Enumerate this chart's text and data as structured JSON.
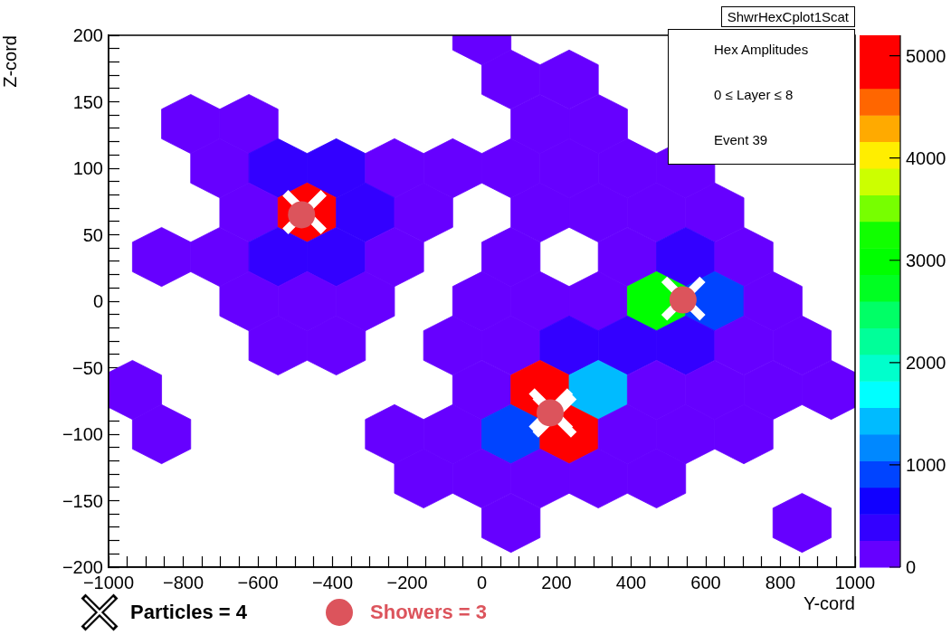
{
  "chart_data": {
    "type": "scatter",
    "xlabel": "Y-cord",
    "ylabel": "Z-cord",
    "annotations": [
      "ShwrHexCplot1Scat",
      "Hex Amplitudes",
      "0 ≤ Layer ≤ 8",
      "Event 39"
    ],
    "xlim": [
      -1000,
      1000
    ],
    "xticks": [
      -1000,
      {
        "value": -950,
        "label": null
      },
      {
        "value": -900,
        "label": null
      },
      {
        "value": -850,
        "label": null
      },
      -800,
      {
        "value": -750,
        "label": null
      },
      {
        "value": -700,
        "label": null
      },
      {
        "value": -650,
        "label": null
      },
      -600,
      {
        "value": -550,
        "label": null
      },
      {
        "value": -500,
        "label": null
      },
      {
        "value": -450,
        "label": null
      },
      -400,
      {
        "value": -350,
        "label": null
      },
      {
        "value": -300,
        "label": null
      },
      {
        "value": -250,
        "label": null
      },
      -200,
      {
        "value": -150,
        "label": null
      },
      {
        "value": -100,
        "label": null
      },
      {
        "value": -50,
        "label": null
      },
      0,
      {
        "value": 50,
        "label": null
      },
      {
        "value": 100,
        "label": null
      },
      {
        "value": 150,
        "label": null
      },
      200,
      {
        "value": 250,
        "label": null
      },
      {
        "value": 300,
        "label": null
      },
      {
        "value": 350,
        "label": null
      },
      400,
      {
        "value": 450,
        "label": null
      },
      {
        "value": 500,
        "label": null
      },
      {
        "value": 550,
        "label": null
      },
      600,
      {
        "value": 650,
        "label": null
      },
      {
        "value": 700,
        "label": null
      },
      {
        "value": 750,
        "label": null
      },
      800,
      {
        "value": 850,
        "label": null
      },
      {
        "value": 900,
        "label": null
      },
      {
        "value": 950,
        "label": null
      },
      1000
    ],
    "ylim": [
      -200,
      200
    ],
    "yticks": [
      -200,
      {
        "value": -190,
        "label": null
      },
      {
        "value": -180,
        "label": null
      },
      {
        "value": -170,
        "label": null
      },
      {
        "value": -160,
        "label": null
      },
      -150,
      {
        "value": -140,
        "label": null
      },
      {
        "value": -130,
        "label": null
      },
      {
        "value": -120,
        "label": null
      },
      {
        "value": -110,
        "label": null
      },
      -100,
      {
        "value": -90,
        "label": null
      },
      {
        "value": -80,
        "label": null
      },
      {
        "value": -70,
        "label": null
      },
      {
        "value": -60,
        "label": null
      },
      -50,
      {
        "value": -40,
        "label": null
      },
      {
        "value": -30,
        "label": null
      },
      {
        "value": -20,
        "label": null
      },
      {
        "value": -10,
        "label": null
      },
      0,
      {
        "value": 10,
        "label": null
      },
      {
        "value": 20,
        "label": null
      },
      {
        "value": 30,
        "label": null
      },
      {
        "value": 40,
        "label": null
      },
      50,
      {
        "value": 60,
        "label": null
      },
      {
        "value": 70,
        "label": null
      },
      {
        "value": 80,
        "label": null
      },
      {
        "value": 90,
        "label": null
      },
      100,
      {
        "value": 110,
        "label": null
      },
      {
        "value": 120,
        "label": null
      },
      {
        "value": 130,
        "label": null
      },
      {
        "value": 140,
        "label": null
      },
      150,
      {
        "value": 160,
        "label": null
      },
      {
        "value": 170,
        "label": null
      },
      {
        "value": 180,
        "label": null
      },
      {
        "value": 190,
        "label": null
      },
      200
    ],
    "clim": [
      0,
      5200
    ],
    "cticks": [
      0,
      1000,
      2000,
      3000,
      4000,
      5000
    ],
    "legend": "bottom",
    "series": [
      {
        "type": "scatter",
        "x": [
          0,
          78,
          234,
          -780,
          -624,
          156,
          312,
          -702,
          -546,
          -390,
          -234,
          -78,
          78,
          234,
          390,
          546,
          -624,
          -468,
          -312,
          -156,
          156,
          312,
          468,
          624,
          -858,
          -702,
          -546,
          -390,
          -234,
          78,
          390,
          546,
          702,
          -624,
          -468,
          -312,
          0,
          156,
          312,
          468,
          624,
          780,
          -546,
          -390,
          -78,
          78,
          234,
          390,
          546,
          702,
          858,
          -936,
          0,
          156,
          312,
          468,
          624,
          780,
          936,
          -858,
          -234,
          -78,
          78,
          234,
          390,
          546,
          702,
          -156,
          0,
          156,
          312,
          468,
          78,
          858
        ],
        "values": [
          200,
          166.7,
          166.7,
          133.3,
          133.3,
          133.3,
          133.3,
          100,
          100,
          100,
          100,
          100,
          100,
          100,
          100,
          100,
          66.7,
          66.7,
          66.7,
          66.7,
          66.7,
          66.7,
          66.7,
          66.7,
          33.3,
          33.3,
          33.3,
          33.3,
          33.3,
          33.3,
          33.3,
          33.3,
          33.3,
          0,
          0,
          0,
          0,
          0,
          0,
          0,
          0,
          0,
          -33.3,
          -33.3,
          -33.3,
          -33.3,
          -33.3,
          -33.3,
          -33.3,
          -33.3,
          -33.3,
          -66.7,
          -66.7,
          -66.7,
          -66.7,
          -66.7,
          -66.7,
          -66.7,
          -66.7,
          -100,
          -100,
          -100,
          -100,
          -100,
          -100,
          -100,
          -100,
          -133.3,
          -133.3,
          -133.3,
          -133.3,
          -133.3,
          -166.7,
          -166.7
        ],
        "cvalues": [
          100,
          100,
          100,
          100,
          100,
          100,
          100,
          100,
          400,
          400,
          100,
          100,
          100,
          100,
          100,
          100,
          100,
          5000,
          400,
          100,
          100,
          100,
          100,
          100,
          100,
          100,
          400,
          400,
          100,
          100,
          100,
          400,
          100,
          100,
          100,
          100,
          100,
          100,
          100,
          3000,
          900,
          100,
          100,
          100,
          100,
          100,
          400,
          400,
          400,
          100,
          100,
          100,
          100,
          5000,
          1400,
          100,
          100,
          100,
          100,
          100,
          100,
          100,
          900,
          5000,
          100,
          100,
          100,
          100,
          100,
          100,
          100,
          100,
          100,
          100
        ],
        "colors": [
          "#6600ff",
          "#6600ff",
          "#6600ff",
          "#6600ff",
          "#6600ff",
          "#6600ff",
          "#6600ff",
          "#6600ff",
          "#3300ff",
          "#3300ff",
          "#6600ff",
          "#6600ff",
          "#6600ff",
          "#6600ff",
          "#6600ff",
          "#6600ff",
          "#6600ff",
          "#ff0000",
          "#3300ff",
          "#6600ff",
          "#6600ff",
          "#6600ff",
          "#6600ff",
          "#6600ff",
          "#6600ff",
          "#6600ff",
          "#3300ff",
          "#3300ff",
          "#6600ff",
          "#6600ff",
          "#6600ff",
          "#3300ff",
          "#6600ff",
          "#6600ff",
          "#6600ff",
          "#6600ff",
          "#6600ff",
          "#6600ff",
          "#6600ff",
          "#00ff00",
          "#0044ff",
          "#6600ff",
          "#6600ff",
          "#6600ff",
          "#6600ff",
          "#6600ff",
          "#3300ff",
          "#3300ff",
          "#3300ff",
          "#6600ff",
          "#6600ff",
          "#6600ff",
          "#6600ff",
          "#ff0000",
          "#00bbff",
          "#6600ff",
          "#6600ff",
          "#6600ff",
          "#6600ff",
          "#6600ff",
          "#6600ff",
          "#6600ff",
          "#0044ff",
          "#ff0000",
          "#6600ff",
          "#6600ff",
          "#6600ff",
          "#6600ff",
          "#6600ff",
          "#6600ff",
          "#6600ff",
          "#6600ff",
          "#6600ff",
          "#6600ff"
        ]
      },
      {
        "type": "scatter",
        "name": "Particles = 4",
        "color": "#ffffff",
        "marker": "cross",
        "x": [
          -475,
          540,
          185,
          195
        ],
        "values": [
          67,
          2,
          -82,
          -86
        ]
      },
      {
        "type": "scatter",
        "name": "Showers = 3",
        "color": "#dc545c",
        "marker": "circle",
        "x": [
          -483,
          539,
          183
        ],
        "values": [
          65,
          1,
          -84
        ]
      }
    ]
  }
}
